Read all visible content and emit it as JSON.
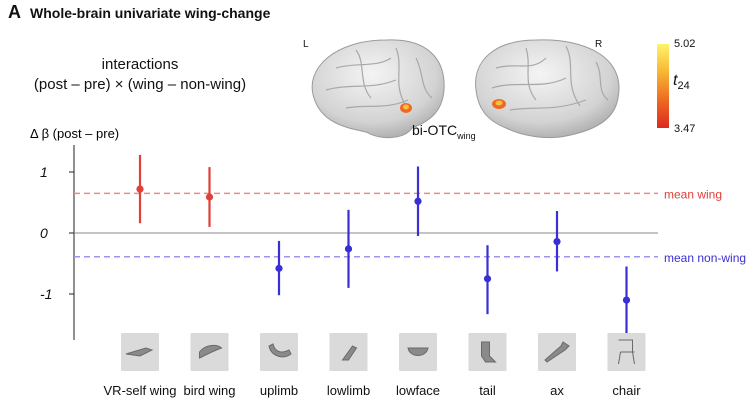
{
  "panel": {
    "letter": "A",
    "title": "Whole-brain univariate wing-change"
  },
  "interactions": {
    "line1": "interactions",
    "line2": "(post – pre) × (wing – non-wing)"
  },
  "brain": {
    "left_label": "L",
    "right_label": "R",
    "roi_label": "bi-OTC",
    "roi_sub": "wing"
  },
  "colorbar": {
    "max": "5.02",
    "min": "3.47",
    "label": "t",
    "label_sub": "24",
    "colors": [
      "#fff36a",
      "#f7b733",
      "#ee6a22",
      "#dd2a1e"
    ]
  },
  "colors": {
    "wing": "#e0403a",
    "nonwing": "#3a2fd6",
    "wing_ref": "#ee8a86",
    "nonwing_ref": "#9b95ee"
  },
  "chart_data": {
    "type": "scatter",
    "ylabel": "Δ β (post – pre)",
    "ylim": [
      -1.65,
      1.45
    ],
    "yticks": [
      {
        "value": 1,
        "label": "1"
      },
      {
        "value": 0,
        "label": "0"
      },
      {
        "value": -1,
        "label": "-1"
      }
    ],
    "categories": [
      "VR-self wing",
      "bird wing",
      "uplimb",
      "lowlimb",
      "lowface",
      "tail",
      "ax",
      "chair"
    ],
    "series": [
      {
        "group": "wing",
        "values": [
          0.72,
          0.59,
          null,
          null,
          null,
          null,
          null,
          null
        ],
        "lower": [
          0.16,
          0.1,
          null,
          null,
          null,
          null,
          null,
          null
        ],
        "upper": [
          1.28,
          1.08,
          null,
          null,
          null,
          null,
          null,
          null
        ]
      },
      {
        "group": "nonwing",
        "values": [
          null,
          null,
          -0.58,
          -0.26,
          0.52,
          -0.75,
          -0.14,
          -1.1
        ],
        "lower": [
          null,
          null,
          -1.02,
          -0.9,
          -0.05,
          -1.33,
          -0.63,
          -1.65
        ],
        "upper": [
          null,
          null,
          -0.13,
          0.38,
          1.09,
          -0.2,
          0.36,
          -0.55
        ]
      }
    ],
    "reference_lines": [
      {
        "label": "mean wing",
        "value": 0.65
      },
      {
        "label": "mean non-wing",
        "value": -0.39
      }
    ],
    "grid": false
  }
}
